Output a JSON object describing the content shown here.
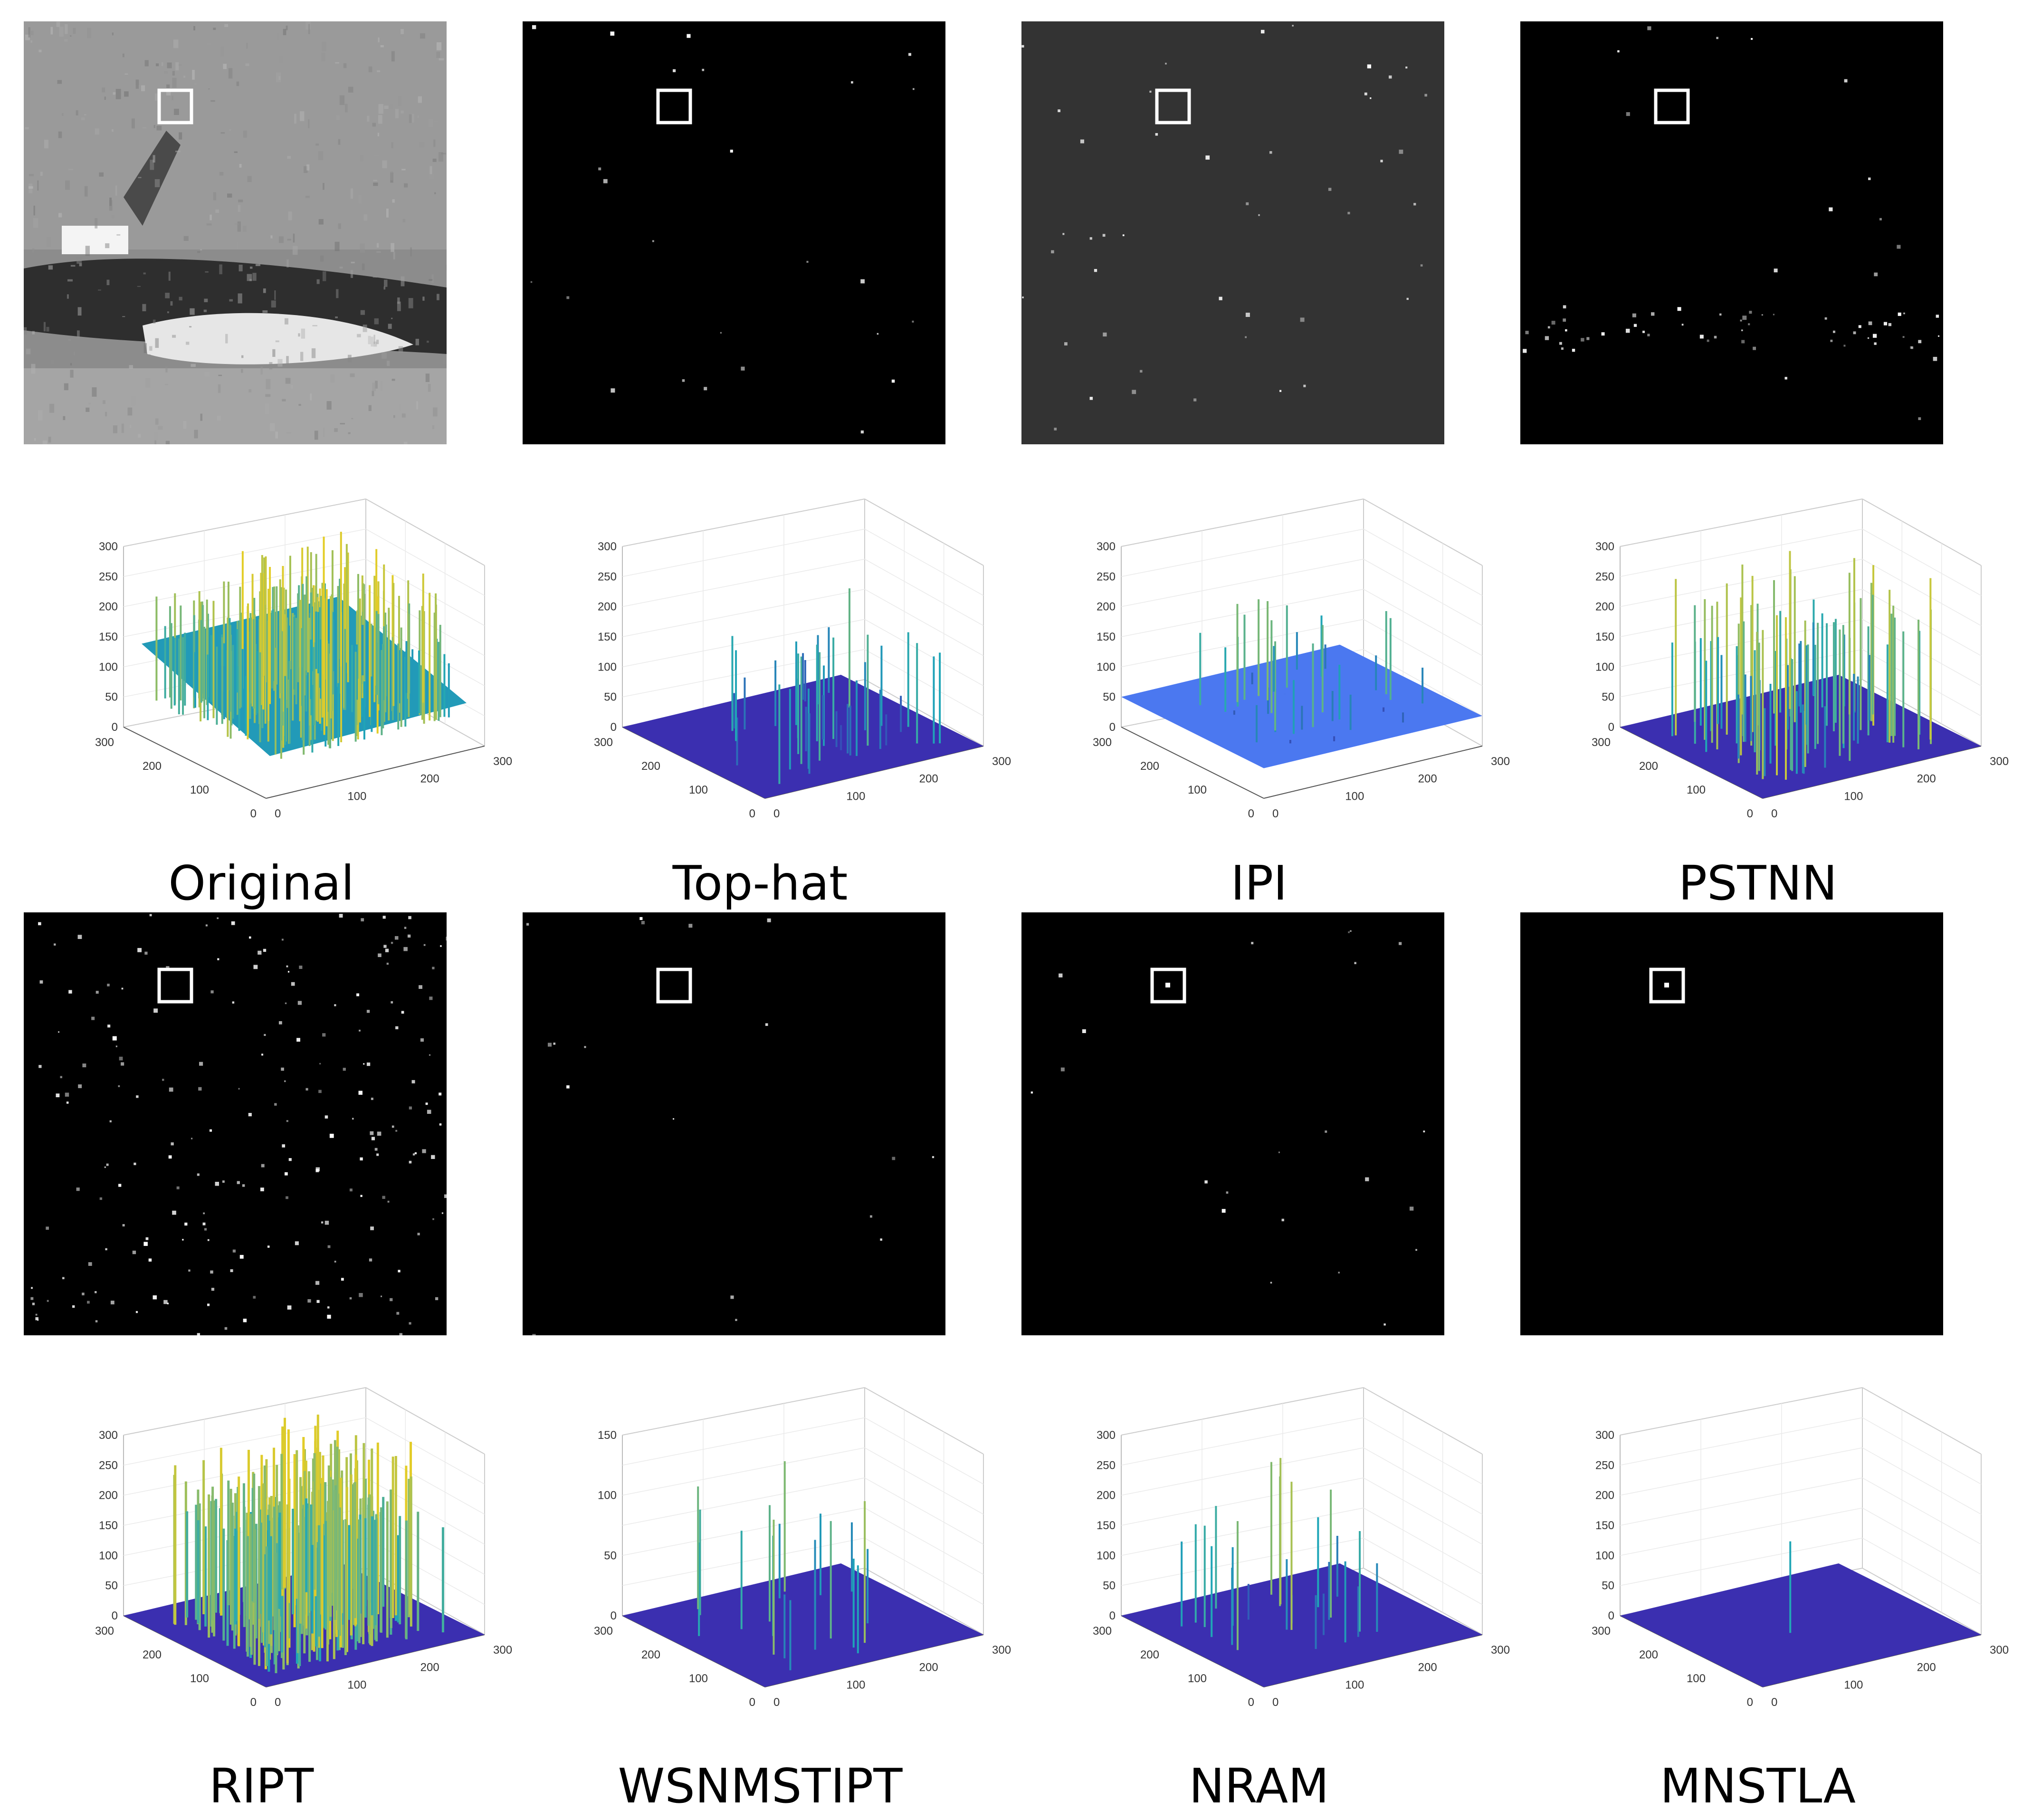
{
  "panels": [
    {
      "id": "original",
      "caption": "Original",
      "bg": "#8c8c8c",
      "zmax": 300,
      "zticks": [
        "0",
        "50",
        "100",
        "150",
        "200",
        "250",
        "300"
      ],
      "peaks": "dense-surface"
    },
    {
      "id": "tophat",
      "caption": "Top-hat",
      "bg": "#000000",
      "zmax": 300,
      "zticks": [
        "0",
        "50",
        "100",
        "150",
        "200",
        "250",
        "300"
      ],
      "peaks": "sparse-low"
    },
    {
      "id": "ipi",
      "caption": "IPI",
      "bg": "#333333",
      "zmax": 300,
      "zticks": [
        "0",
        "50",
        "100",
        "150",
        "200",
        "250",
        "300"
      ],
      "peaks": "raised-plane"
    },
    {
      "id": "pstnn",
      "caption": "PSTNN",
      "bg": "#000000",
      "zmax": 300,
      "zticks": [
        "0",
        "50",
        "100",
        "150",
        "200",
        "250",
        "300"
      ],
      "peaks": "many-high"
    },
    {
      "id": "ript",
      "caption": "RIPT",
      "bg": "#000000",
      "zmax": 300,
      "zticks": [
        "0",
        "50",
        "100",
        "150",
        "200",
        "250",
        "300"
      ],
      "peaks": "very-dense"
    },
    {
      "id": "wsnmstipt",
      "caption": "WSNMSTIPT",
      "bg": "#000000",
      "zmax": 150,
      "zticks": [
        "0",
        "50",
        "100",
        "150"
      ],
      "peaks": "few-mid"
    },
    {
      "id": "nram",
      "caption": "NRAM",
      "bg": "#000000",
      "zmax": 300,
      "zticks": [
        "0",
        "50",
        "100",
        "150",
        "200",
        "250",
        "300"
      ],
      "peaks": "some-mid"
    },
    {
      "id": "mnstla",
      "caption": "MNSTLA",
      "bg": "#000000",
      "zmax": 300,
      "zticks": [
        "0",
        "50",
        "100",
        "150",
        "200",
        "250",
        "300"
      ],
      "peaks": "single"
    }
  ],
  "axis_ticks": {
    "x": [
      "0",
      "100",
      "200",
      "300"
    ],
    "y": [
      "0",
      "100",
      "200",
      "300"
    ]
  },
  "colors": {
    "surface_low": "#3d2db8",
    "surface_mid": "#1fa6b8",
    "surface_high": "#f5d01a",
    "target_box": "#ffffff"
  }
}
